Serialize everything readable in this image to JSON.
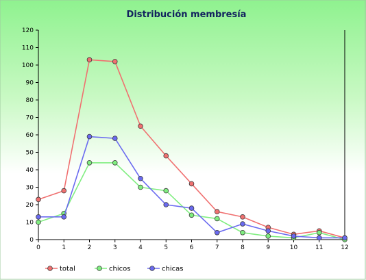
{
  "chart_data": {
    "type": "line",
    "title": "Distribución membresía",
    "x": [
      0,
      1,
      2,
      3,
      4,
      5,
      6,
      7,
      8,
      9,
      10,
      11,
      12
    ],
    "ylim": [
      0,
      120
    ],
    "yticks": [
      0,
      10,
      20,
      30,
      40,
      50,
      60,
      70,
      80,
      90,
      100,
      110,
      120
    ],
    "grid": false,
    "legend": "bottom-left",
    "series": [
      {
        "name": "total",
        "color": "#f07070",
        "values": [
          23,
          28,
          103,
          102,
          65,
          48,
          32,
          16,
          13,
          7,
          3,
          5,
          1
        ]
      },
      {
        "name": "chicos",
        "color": "#80ee80",
        "values": [
          10,
          15,
          44,
          44,
          30,
          28,
          14,
          12,
          4,
          2,
          1,
          4,
          0
        ]
      },
      {
        "name": "chicas",
        "color": "#6a6af0",
        "values": [
          13,
          13,
          59,
          58,
          35,
          20,
          18,
          4,
          9,
          5,
          2,
          1,
          1
        ]
      }
    ]
  }
}
